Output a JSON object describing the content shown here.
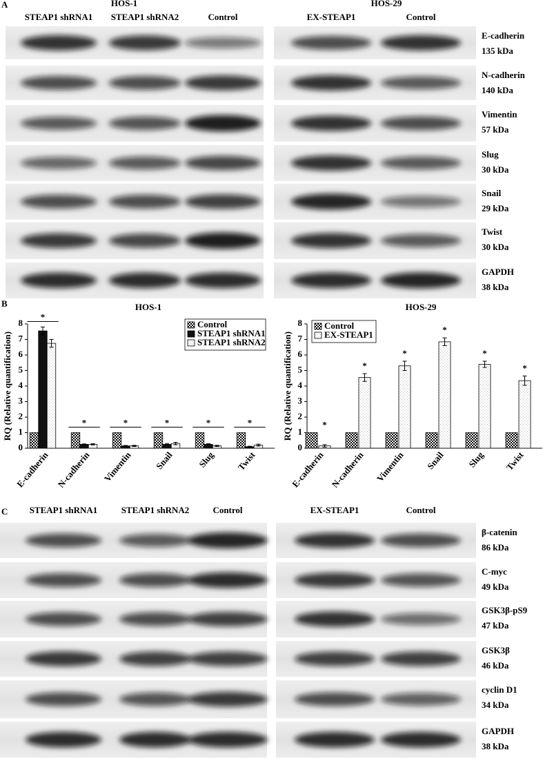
{
  "panel_a": {
    "label": "A",
    "left": {
      "title": "HOS-1",
      "lanes": [
        "STEAP1 shRNA1",
        "STEAP1 shRNA2",
        "Control"
      ]
    },
    "right": {
      "title": "HOS-29",
      "lanes": [
        "EX-STEAP1",
        "Control"
      ]
    },
    "proteins": [
      {
        "name": "E-cadherin",
        "size": "135 kDa"
      },
      {
        "name": "N-cadherin",
        "size": "140 kDa"
      },
      {
        "name": "Vimentin",
        "size": "57 kDa"
      },
      {
        "name": "Slug",
        "size": "30 kDa"
      },
      {
        "name": "Snail",
        "size": "29 kDa"
      },
      {
        "name": "Twist",
        "size": "30 kDa"
      },
      {
        "name": "GAPDH",
        "size": "38 kDa"
      }
    ]
  },
  "panel_b": {
    "label": "B"
  },
  "chart_data": [
    {
      "type": "bar",
      "title": "HOS-1",
      "y_label": "RQ (Relative quantification)",
      "categories": [
        "E-cadherin",
        "N-cadherin",
        "Vimentin",
        "Snail",
        "Slug",
        "Twist"
      ],
      "series": [
        {
          "name": "Control",
          "color": "#000000",
          "pattern": "checker",
          "values": [
            1,
            1,
            1,
            1,
            1,
            1
          ]
        },
        {
          "name": "STEAP1 shRNA1",
          "color": "#111111",
          "pattern": "solid",
          "values": [
            7.55,
            0.25,
            0.15,
            0.25,
            0.25,
            0.1
          ],
          "errors": [
            0.25,
            0.03,
            0.03,
            0.05,
            0.04,
            0.03
          ]
        },
        {
          "name": "STEAP1 shRNA2",
          "color": "#cccccc",
          "pattern": "dots",
          "values": [
            6.75,
            0.25,
            0.15,
            0.3,
            0.15,
            0.2
          ],
          "errors": [
            0.25,
            0.04,
            0.04,
            0.08,
            0.04,
            0.06
          ]
        }
      ],
      "significance": [
        "*",
        "*",
        "*",
        "*",
        "*",
        "*"
      ],
      "ylim": [
        0,
        8
      ],
      "yticks": [
        0,
        1,
        2,
        3,
        4,
        5,
        6,
        7,
        8
      ],
      "legend": "upper right"
    },
    {
      "type": "bar",
      "title": "HOS-29",
      "y_label": "RQ (Relative quantification)",
      "categories": [
        "E-cadherin",
        "N-cadherin",
        "Vimentin",
        "Snail",
        "Slug",
        "Twist"
      ],
      "series": [
        {
          "name": "Control",
          "color": "#000000",
          "pattern": "checker",
          "values": [
            1,
            1,
            1,
            1,
            1,
            1
          ]
        },
        {
          "name": "EX-STEAP1",
          "color": "#cccccc",
          "pattern": "dots",
          "values": [
            0.15,
            4.55,
            5.3,
            6.85,
            5.4,
            4.35
          ],
          "errors": [
            0.08,
            0.25,
            0.3,
            0.25,
            0.2,
            0.3
          ]
        }
      ],
      "significance": [
        "*",
        "*",
        "*",
        "*",
        "*",
        "*"
      ],
      "ylim": [
        0,
        8
      ],
      "yticks": [
        0,
        1,
        2,
        3,
        4,
        5,
        6,
        7,
        8
      ],
      "legend": "upper left"
    }
  ],
  "panel_c": {
    "label": "C",
    "left": {
      "lanes": [
        "STEAP1 shRNA1",
        "STEAP1 shRNA2",
        "Control"
      ]
    },
    "right": {
      "lanes": [
        "EX-STEAP1",
        "Control"
      ]
    },
    "proteins": [
      {
        "name": "β-catenin",
        "size": "86 kDa"
      },
      {
        "name": "C-myc",
        "size": "49 kDa"
      },
      {
        "name": "GSK3β-pS9",
        "size": "47 kDa"
      },
      {
        "name": "GSK3β",
        "size": "46 kDa"
      },
      {
        "name": "cyclin D1",
        "size": "34 kDa"
      },
      {
        "name": "GAPDH",
        "size": "38 kDa"
      }
    ]
  }
}
